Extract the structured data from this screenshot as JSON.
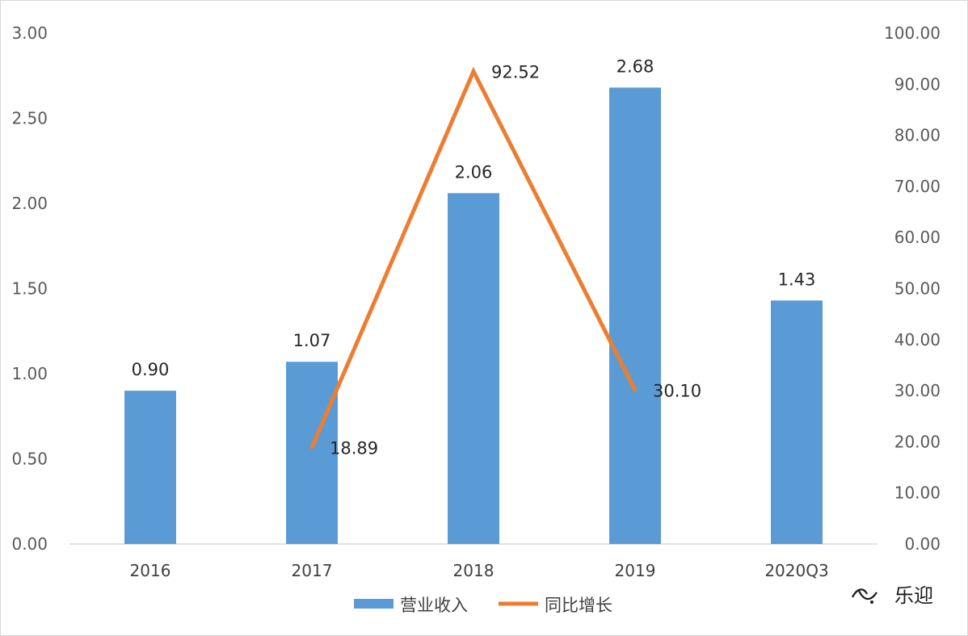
{
  "chart_data": {
    "type": "bar",
    "categories": [
      "2016",
      "2017",
      "2018",
      "2019",
      "2020Q3"
    ],
    "series": [
      {
        "name": "营业收入",
        "type": "bar",
        "axis": "left",
        "color": "#5b9bd5",
        "values": [
          0.9,
          1.07,
          2.06,
          2.68,
          1.43
        ],
        "labels": [
          "0.90",
          "1.07",
          "2.06",
          "2.68",
          "1.43"
        ]
      },
      {
        "name": "同比增长",
        "type": "line",
        "axis": "right",
        "color": "#ed7d31",
        "values": [
          null,
          18.89,
          92.52,
          30.1,
          null
        ],
        "labels": [
          "",
          "18.89",
          "92.52",
          "30.10",
          ""
        ]
      }
    ],
    "y_left": {
      "ylim": [
        0,
        3
      ],
      "ticks": [
        "0.00",
        "0.50",
        "1.00",
        "1.50",
        "2.00",
        "2.50",
        "3.00"
      ]
    },
    "y_right": {
      "ylim": [
        0,
        100
      ],
      "ticks": [
        "0.00",
        "10.00",
        "20.00",
        "30.00",
        "40.00",
        "50.00",
        "60.00",
        "70.00",
        "80.00",
        "90.00",
        "100.00"
      ]
    },
    "grid": false,
    "legend_position": "bottom"
  },
  "watermark": {
    "text": "乐迎",
    "icon": "wechat-channel-icon"
  }
}
